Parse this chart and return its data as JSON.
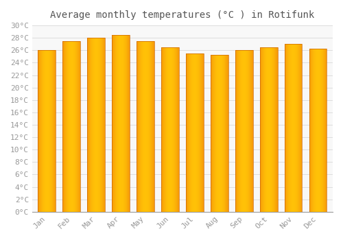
{
  "title": "Average monthly temperatures (°C ) in Rotifunk",
  "months": [
    "Jan",
    "Feb",
    "Mar",
    "Apr",
    "May",
    "Jun",
    "Jul",
    "Aug",
    "Sep",
    "Oct",
    "Nov",
    "Dec"
  ],
  "values": [
    26.0,
    27.5,
    28.0,
    28.5,
    27.5,
    26.5,
    25.5,
    25.3,
    26.0,
    26.5,
    27.0,
    26.3
  ],
  "bar_color_center": "#FFC107",
  "bar_color_edge": "#F0820A",
  "bar_edge_color": "#CC6600",
  "bar_edge_width": 0.5,
  "ylim": [
    0,
    30
  ],
  "ytick_step": 2,
  "background_color": "#FFFFFF",
  "plot_bg_color": "#F8F8F8",
  "grid_color": "#DDDDDD",
  "title_fontsize": 10,
  "tick_fontsize": 8,
  "bar_width": 0.72,
  "tick_color": "#999999"
}
